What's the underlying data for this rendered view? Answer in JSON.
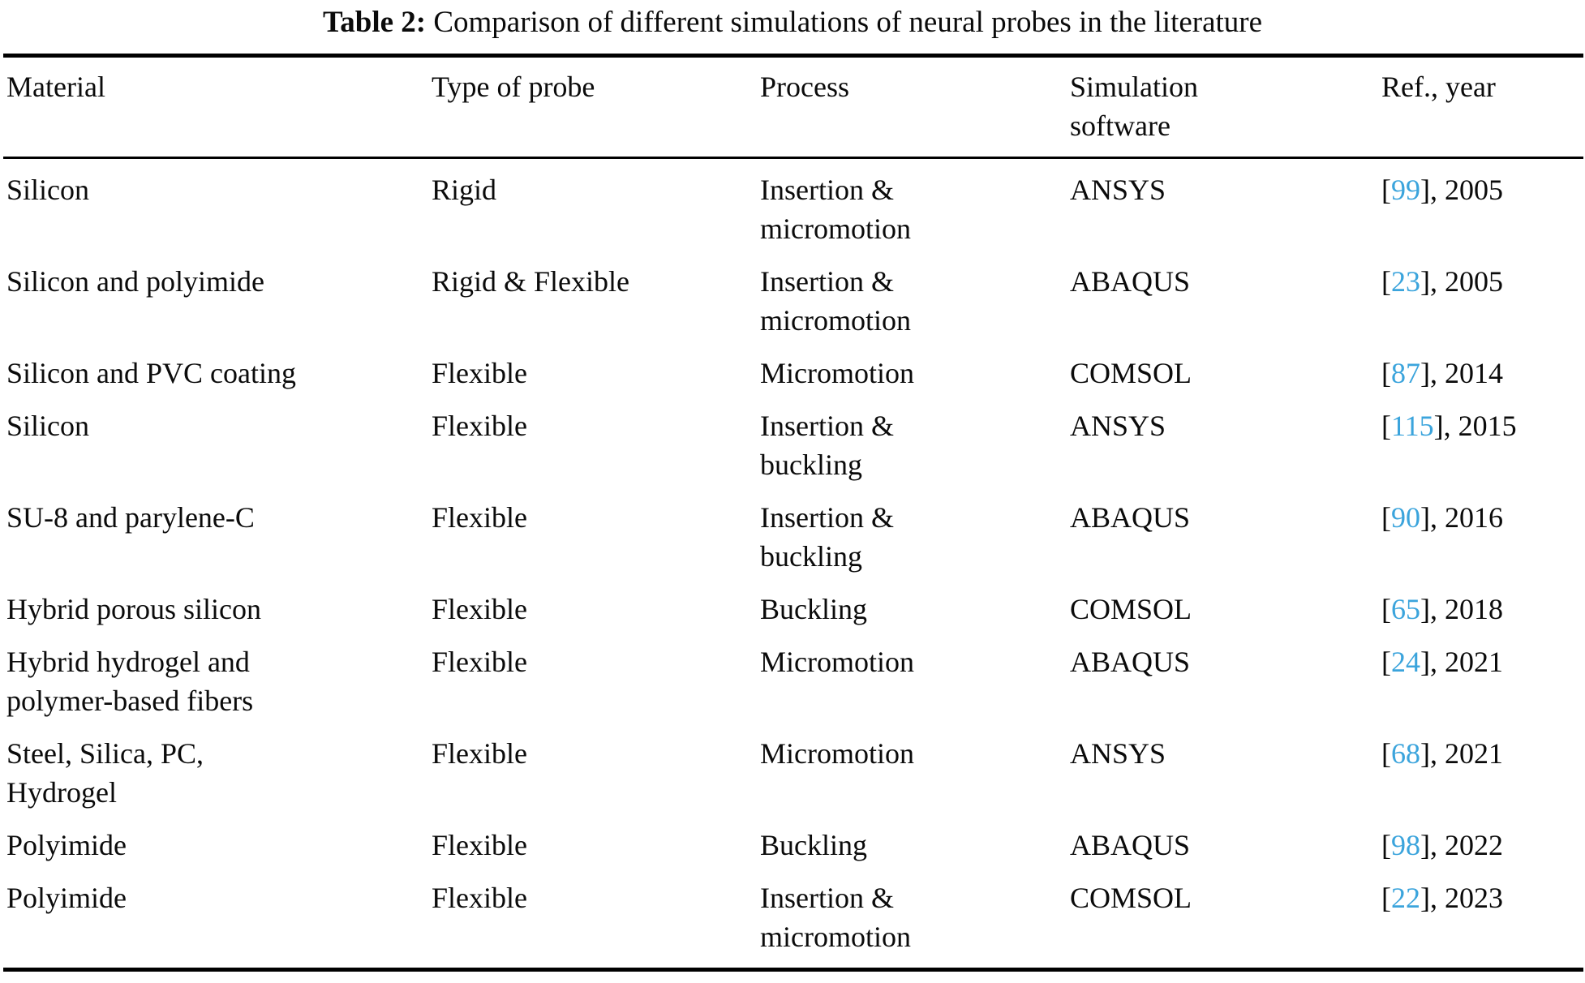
{
  "caption": {
    "label": "Table 2:",
    "text": "Comparison of different simulations of neural probes in the literature"
  },
  "accent_color": "#3ba4dc",
  "text_color": "#0b0b0b",
  "table": {
    "columns": [
      "Material",
      "Type of probe",
      "Process",
      "Simulation\nsoftware",
      "Ref., year"
    ],
    "rows": [
      {
        "material": "Silicon",
        "type": "Rigid",
        "process": "Insertion &\nmicromotion",
        "software": "ANSYS",
        "ref": {
          "open": "[",
          "num": "99",
          "close": "], ",
          "year": "2005"
        }
      },
      {
        "material": "Silicon and polyimide",
        "type": "Rigid & Flexible",
        "process": "Insertion &\nmicromotion",
        "software": "ABAQUS",
        "ref": {
          "open": "[",
          "num": "23",
          "close": "], ",
          "year": "2005"
        }
      },
      {
        "material": "Silicon and PVC coating",
        "type": "Flexible",
        "process": "Micromotion",
        "software": "COMSOL",
        "ref": {
          "open": "[",
          "num": "87",
          "close": "], ",
          "year": "2014"
        }
      },
      {
        "material": "Silicon",
        "type": "Flexible",
        "process": "Insertion &\nbuckling",
        "software": "ANSYS",
        "ref": {
          "open": "[",
          "num": "115",
          "close": "], ",
          "year": "2015"
        }
      },
      {
        "material": "SU-8 and parylene-C",
        "type": "Flexible",
        "process": "Insertion &\nbuckling",
        "software": "ABAQUS",
        "ref": {
          "open": "[",
          "num": "90",
          "close": "], ",
          "year": "2016"
        }
      },
      {
        "material": "Hybrid porous silicon",
        "type": "Flexible",
        "process": "Buckling",
        "software": "COMSOL",
        "ref": {
          "open": "[",
          "num": "65",
          "close": "], ",
          "year": "2018"
        }
      },
      {
        "material": "Hybrid hydrogel and\npolymer-based fibers",
        "type": "Flexible",
        "process": "Micromotion",
        "software": "ABAQUS",
        "ref": {
          "open": "[",
          "num": "24",
          "close": "], ",
          "year": "2021"
        }
      },
      {
        "material": "Steel, Silica, PC,\nHydrogel",
        "type": "Flexible",
        "process": "Micromotion",
        "software": "ANSYS",
        "ref": {
          "open": "[",
          "num": "68",
          "close": "], ",
          "year": "2021"
        }
      },
      {
        "material": "Polyimide",
        "type": "Flexible",
        "process": "Buckling",
        "software": "ABAQUS",
        "ref": {
          "open": "[",
          "num": "98",
          "close": "], ",
          "year": "2022"
        }
      },
      {
        "material": "Polyimide",
        "type": "Flexible",
        "process": "Insertion &\nmicromotion",
        "software": "COMSOL",
        "ref": {
          "open": "[",
          "num": "22",
          "close": "], ",
          "year": "2023"
        }
      }
    ]
  }
}
